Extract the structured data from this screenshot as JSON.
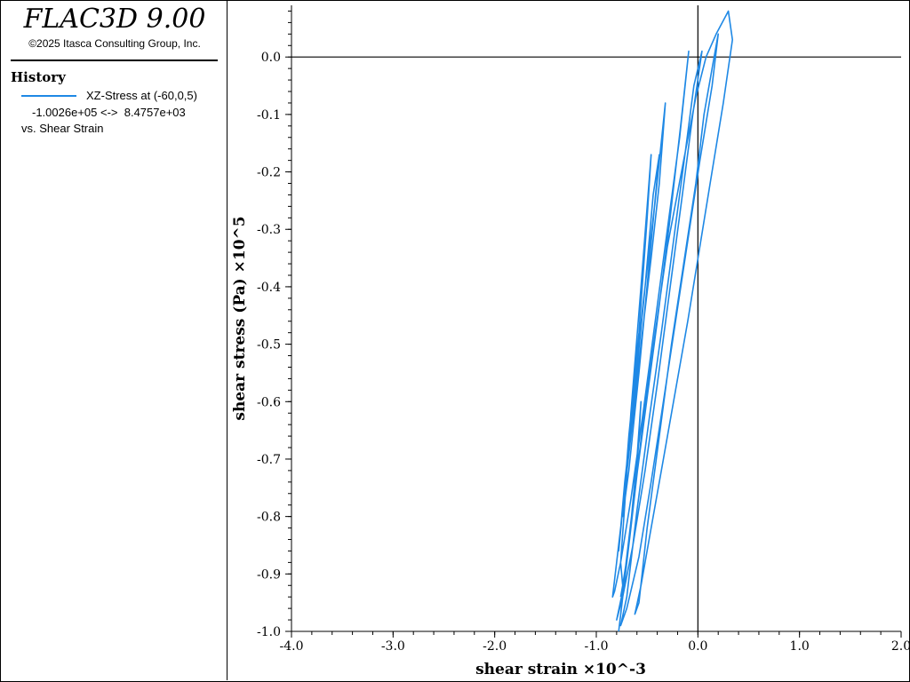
{
  "app": {
    "title": "FLAC3D 9.00",
    "copyright": "©2025 Itasca Consulting Group, Inc."
  },
  "legend": {
    "heading": "History",
    "series_label": "XZ-Stress at (-60,0,5)",
    "range_text": "-1.0026e+05 <->  8.4757e+03",
    "vs_text": "vs. Shear Strain",
    "color": "#1e88e5"
  },
  "chart_data": {
    "type": "line",
    "xlabel": "shear strain ×10^-3",
    "ylabel": "shear stress (Pa) ×10^5",
    "xlim": [
      -4.0,
      2.0
    ],
    "ylim": [
      -1.0,
      0.09
    ],
    "xticks": [
      "-4.0",
      "-3.0",
      "-2.0",
      "-1.0",
      "0.0",
      "1.0",
      "2.0"
    ],
    "yticks": [
      "0.0",
      "-0.1",
      "-0.2",
      "-0.3",
      "-0.4",
      "-0.5",
      "-0.6",
      "-0.7",
      "-0.8",
      "-0.9",
      "-1.0"
    ],
    "series": [
      {
        "x": [
          -0.78,
          -0.66,
          -0.55,
          -0.42,
          -0.3,
          -0.14,
          -0.02,
          0.08,
          0.18,
          0.3,
          0.34,
          0.25,
          0.12,
          0.01,
          -0.1,
          -0.22,
          -0.34,
          -0.46,
          -0.56,
          -0.62,
          -0.58,
          -0.5,
          -0.38,
          -0.26,
          -0.14,
          -0.02,
          0.06,
          0.14,
          0.2,
          0.14,
          0.02,
          -0.1,
          -0.22,
          -0.34,
          -0.46,
          -0.58,
          -0.7,
          -0.76,
          -0.7,
          -0.6,
          -0.48,
          -0.36,
          -0.24,
          -0.12,
          -0.04,
          0.04,
          -0.05,
          -0.16,
          -0.28,
          -0.4,
          -0.52,
          -0.64,
          -0.74,
          -0.8,
          -0.74,
          -0.64,
          -0.52,
          -0.4,
          -0.28,
          -0.17,
          -0.09,
          -0.18,
          -0.3,
          -0.42,
          -0.54,
          -0.66,
          -0.76,
          -0.82,
          -0.84,
          -0.76,
          -0.66,
          -0.56,
          -0.46,
          -0.38,
          -0.32,
          -0.42,
          -0.54,
          -0.64,
          -0.72,
          -0.78,
          -0.72,
          -0.62,
          -0.52,
          -0.44,
          -0.38,
          -0.48,
          -0.58,
          -0.68,
          -0.74,
          -0.68,
          -0.58,
          -0.5,
          -0.46,
          -0.56,
          -0.66,
          -0.72,
          -0.76,
          -0.74,
          -0.68,
          -0.6,
          -0.56,
          -0.6,
          -0.68,
          -0.72,
          -0.76
        ],
        "y": [
          -1.0,
          -0.82,
          -0.65,
          -0.48,
          -0.33,
          -0.18,
          -0.07,
          0.0,
          0.04,
          0.08,
          0.03,
          -0.08,
          -0.22,
          -0.34,
          -0.46,
          -0.58,
          -0.7,
          -0.82,
          -0.92,
          -0.97,
          -0.95,
          -0.82,
          -0.66,
          -0.5,
          -0.36,
          -0.22,
          -0.1,
          -0.02,
          0.04,
          -0.05,
          -0.18,
          -0.32,
          -0.46,
          -0.6,
          -0.74,
          -0.87,
          -0.96,
          -0.99,
          -0.94,
          -0.79,
          -0.63,
          -0.48,
          -0.32,
          -0.16,
          -0.05,
          0.01,
          -0.1,
          -0.25,
          -0.41,
          -0.57,
          -0.72,
          -0.85,
          -0.94,
          -0.98,
          -0.93,
          -0.78,
          -0.62,
          -0.46,
          -0.29,
          -0.12,
          0.01,
          -0.14,
          -0.3,
          -0.46,
          -0.62,
          -0.77,
          -0.88,
          -0.93,
          -0.94,
          -0.82,
          -0.66,
          -0.5,
          -0.35,
          -0.22,
          -0.08,
          -0.25,
          -0.43,
          -0.6,
          -0.75,
          -0.86,
          -0.74,
          -0.58,
          -0.4,
          -0.24,
          -0.17,
          -0.36,
          -0.55,
          -0.72,
          -0.8,
          -0.66,
          -0.48,
          -0.28,
          -0.17,
          -0.4,
          -0.62,
          -0.78,
          -0.88,
          -0.92,
          -0.85,
          -0.7,
          -0.6,
          -0.72,
          -0.84,
          -0.9,
          -0.94
        ]
      }
    ]
  }
}
